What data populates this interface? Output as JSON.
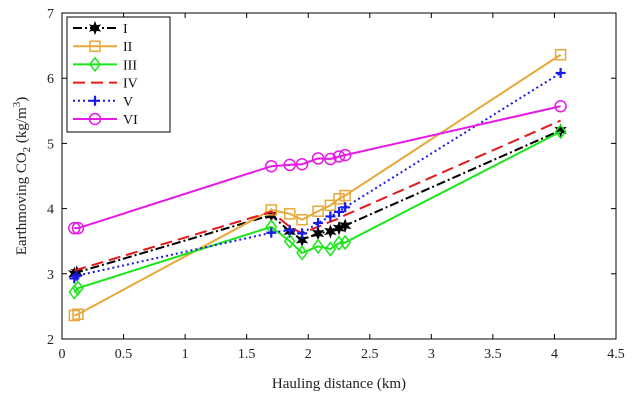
{
  "chart_data": {
    "type": "line",
    "xlabel": "Hauling distance (km)",
    "ylabel": {
      "pre": "Earthmoving CO",
      "sub": "2",
      "post": " (kg/m",
      "sup": "3",
      "end": ")"
    },
    "xlim": [
      0,
      4.5
    ],
    "ylim": [
      2,
      7
    ],
    "xticks": [
      0,
      0.5,
      1,
      1.5,
      2,
      2.5,
      3,
      3.5,
      4,
      4.5
    ],
    "xtick_labels": [
      "0",
      "0.5",
      "1",
      "1.5",
      "2",
      "2.5",
      "3",
      "3.5",
      "4",
      "4.5"
    ],
    "yticks": [
      2,
      3,
      4,
      5,
      6,
      7
    ],
    "ytick_labels": [
      "2",
      "3",
      "4",
      "5",
      "6",
      "7"
    ],
    "legend_position": "top-left",
    "series": [
      {
        "name": "I",
        "color": "#000000",
        "dash": "9,3,2,3",
        "marker": "hexstar",
        "x": [
          0.1,
          0.12,
          1.7,
          1.85,
          1.95,
          2.08,
          2.18,
          2.25,
          2.3,
          4.05
        ],
        "y": [
          3.0,
          3.02,
          3.9,
          3.65,
          3.52,
          3.62,
          3.65,
          3.7,
          3.74,
          5.2
        ]
      },
      {
        "name": "II",
        "color": "#E8A838",
        "dash": "",
        "marker": "square",
        "x": [
          0.1,
          0.13,
          1.7,
          1.85,
          1.95,
          2.08,
          2.18,
          2.25,
          2.3,
          4.05
        ],
        "y": [
          2.36,
          2.38,
          3.98,
          3.92,
          3.83,
          3.96,
          4.05,
          4.15,
          4.2,
          6.36
        ]
      },
      {
        "name": "III",
        "color": "#1AE61A",
        "dash": "",
        "marker": "diamond",
        "x": [
          0.1,
          0.13,
          1.7,
          1.85,
          1.95,
          2.08,
          2.18,
          2.25,
          2.3,
          4.05
        ],
        "y": [
          2.72,
          2.78,
          3.72,
          3.5,
          3.32,
          3.42,
          3.38,
          3.47,
          3.48,
          5.18
        ]
      },
      {
        "name": "IV",
        "color": "#E61919",
        "dash": "12,6",
        "marker": "none",
        "x": [
          0.1,
          1.7,
          1.85,
          1.95,
          2.08,
          2.18,
          2.25,
          2.3,
          4.05
        ],
        "y": [
          3.05,
          3.95,
          3.72,
          3.62,
          3.72,
          3.8,
          3.85,
          3.9,
          5.35
        ]
      },
      {
        "name": "V",
        "color": "#1A1AE6",
        "dash": "2,3",
        "marker": "plus",
        "x": [
          0.1,
          0.12,
          1.7,
          1.85,
          1.95,
          2.08,
          2.18,
          2.25,
          2.3,
          4.05
        ],
        "y": [
          2.93,
          2.97,
          3.63,
          3.67,
          3.62,
          3.78,
          3.88,
          3.95,
          4.02,
          6.08
        ]
      },
      {
        "name": "VI",
        "color": "#E619E6",
        "dash": "",
        "marker": "circle",
        "x": [
          0.1,
          0.13,
          1.7,
          1.85,
          1.95,
          2.08,
          2.18,
          2.25,
          2.3,
          4.05
        ],
        "y": [
          3.7,
          3.7,
          4.65,
          4.67,
          4.68,
          4.77,
          4.76,
          4.8,
          4.82,
          5.57
        ]
      }
    ]
  }
}
